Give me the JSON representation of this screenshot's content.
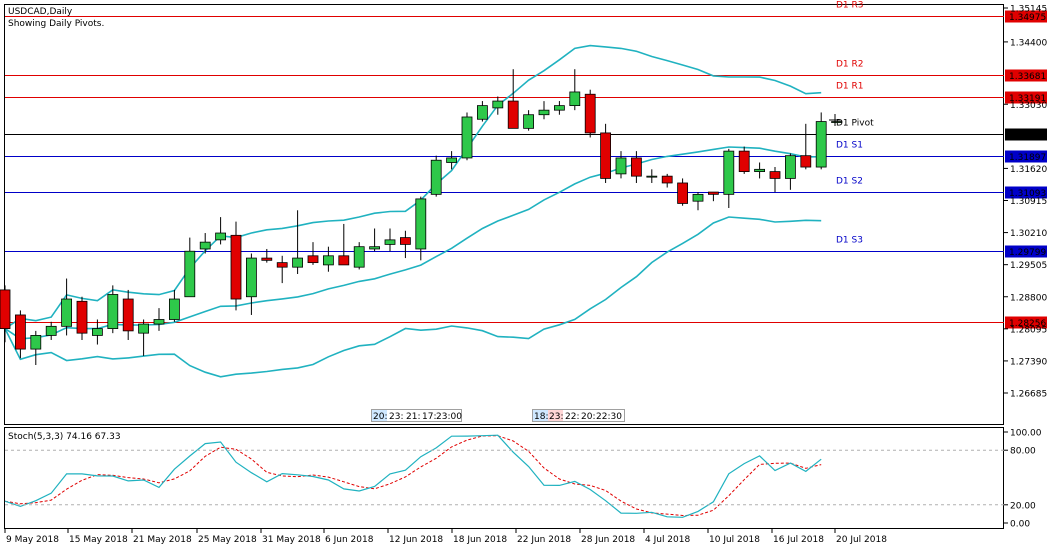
{
  "header": {
    "symbol": "USDCAD,Daily",
    "subtitle": "Showing Daily Pivots."
  },
  "colors": {
    "bull": "#2ec84a",
    "bear": "#e00000",
    "bollinger": "#20b2c0",
    "pivot_resistance": "#e00000",
    "pivot_support": "#0000c8",
    "pivot_main": "#000000",
    "stoch_main": "#20b2c0",
    "stoch_signal": "#e00000"
  },
  "price_axis": {
    "labels": [
      "1.35145",
      "1.34400",
      "1.33030",
      "1.31620",
      "1.30915",
      "1.30210",
      "1.29505",
      "1.28800",
      "1.28095",
      "1.27390",
      "1.26685"
    ]
  },
  "pivots": [
    {
      "name": "D1 R3",
      "value": "1.34975",
      "type": "resistance"
    },
    {
      "name": "D1 R2",
      "value": "1.33681",
      "type": "resistance"
    },
    {
      "name": "D1 R1",
      "value": "1.33191",
      "type": "resistance"
    },
    {
      "name": "D1 Pivot",
      "value": "1.32387",
      "type": "pivot"
    },
    {
      "name": "D1 S1",
      "value": "1.31897",
      "type": "support"
    },
    {
      "name": "D1 S2",
      "value": "1.31093",
      "type": "support"
    },
    {
      "name": "D1 S3",
      "value": "1.29799",
      "type": "support"
    },
    {
      "name": "",
      "value": "1.28256",
      "type": "resistance"
    }
  ],
  "time_ticker_1": [
    "20:",
    "23:",
    "21:",
    "17:",
    "23:00"
  ],
  "time_ticker_2": [
    "18:",
    "23:",
    "22:",
    "20:",
    "22:30"
  ],
  "stochastic": {
    "label": "Stoch(5,3,3) 74.16 67.33",
    "axis": [
      "100.00",
      "80.00",
      "20.00",
      "0.00"
    ]
  },
  "date_axis": [
    "9 May 2018",
    "15 May 2018",
    "21 May 2018",
    "25 May 2018",
    "31 May 2018",
    "6 Jun 2018",
    "12 Jun 2018",
    "18 Jun 2018",
    "22 Jun 2018",
    "28 Jun 2018",
    "4 Jul 2018",
    "10 Jul 2018",
    "16 Jul 2018",
    "20 Jul 2018"
  ],
  "chart_data": {
    "type": "candlestick",
    "title": "USDCAD,Daily",
    "candles": [
      {
        "o": 1.2895,
        "h": 1.2905,
        "l": 1.278,
        "c": 1.281
      },
      {
        "o": 1.284,
        "h": 1.285,
        "l": 1.2745,
        "c": 1.2765
      },
      {
        "o": 1.2765,
        "h": 1.2805,
        "l": 1.273,
        "c": 1.2795
      },
      {
        "o": 1.2795,
        "h": 1.2825,
        "l": 1.2785,
        "c": 1.2815
      },
      {
        "o": 1.2815,
        "h": 1.292,
        "l": 1.2795,
        "c": 1.2875
      },
      {
        "o": 1.287,
        "h": 1.288,
        "l": 1.2785,
        "c": 1.28
      },
      {
        "o": 1.2795,
        "h": 1.283,
        "l": 1.2775,
        "c": 1.281
      },
      {
        "o": 1.281,
        "h": 1.2905,
        "l": 1.28,
        "c": 1.2885
      },
      {
        "o": 1.2875,
        "h": 1.2895,
        "l": 1.2785,
        "c": 1.2805
      },
      {
        "o": 1.28,
        "h": 1.283,
        "l": 1.275,
        "c": 1.282
      },
      {
        "o": 1.282,
        "h": 1.2855,
        "l": 1.2805,
        "c": 1.283
      },
      {
        "o": 1.283,
        "h": 1.2895,
        "l": 1.2825,
        "c": 1.2875
      },
      {
        "o": 1.288,
        "h": 1.301,
        "l": 1.288,
        "c": 1.298
      },
      {
        "o": 1.2985,
        "h": 1.302,
        "l": 1.2975,
        "c": 1.3
      },
      {
        "o": 1.3005,
        "h": 1.3055,
        "l": 1.2995,
        "c": 1.302
      },
      {
        "o": 1.3015,
        "h": 1.3045,
        "l": 1.285,
        "c": 1.2875
      },
      {
        "o": 1.288,
        "h": 1.2975,
        "l": 1.284,
        "c": 1.2965
      },
      {
        "o": 1.2965,
        "h": 1.2985,
        "l": 1.2955,
        "c": 1.296
      },
      {
        "o": 1.2955,
        "h": 1.297,
        "l": 1.291,
        "c": 1.2945
      },
      {
        "o": 1.2945,
        "h": 1.307,
        "l": 1.293,
        "c": 1.2965
      },
      {
        "o": 1.297,
        "h": 1.3,
        "l": 1.295,
        "c": 1.2955
      },
      {
        "o": 1.295,
        "h": 1.299,
        "l": 1.2935,
        "c": 1.297
      },
      {
        "o": 1.297,
        "h": 1.304,
        "l": 1.295,
        "c": 1.295
      },
      {
        "o": 1.2945,
        "h": 1.3,
        "l": 1.294,
        "c": 1.299
      },
      {
        "o": 1.2985,
        "h": 1.303,
        "l": 1.298,
        "c": 1.299
      },
      {
        "o": 1.2995,
        "h": 1.303,
        "l": 1.298,
        "c": 1.3005
      },
      {
        "o": 1.301,
        "h": 1.3025,
        "l": 1.2965,
        "c": 1.2995
      },
      {
        "o": 1.2985,
        "h": 1.31,
        "l": 1.296,
        "c": 1.3095
      },
      {
        "o": 1.3105,
        "h": 1.319,
        "l": 1.31,
        "c": 1.318
      },
      {
        "o": 1.3175,
        "h": 1.32,
        "l": 1.316,
        "c": 1.3185
      },
      {
        "o": 1.3185,
        "h": 1.3285,
        "l": 1.318,
        "c": 1.3275
      },
      {
        "o": 1.327,
        "h": 1.331,
        "l": 1.3265,
        "c": 1.33
      },
      {
        "o": 1.3295,
        "h": 1.332,
        "l": 1.328,
        "c": 1.331
      },
      {
        "o": 1.331,
        "h": 1.338,
        "l": 1.325,
        "c": 1.325
      },
      {
        "o": 1.325,
        "h": 1.329,
        "l": 1.3245,
        "c": 1.328
      },
      {
        "o": 1.328,
        "h": 1.331,
        "l": 1.327,
        "c": 1.329
      },
      {
        "o": 1.329,
        "h": 1.331,
        "l": 1.328,
        "c": 1.33
      },
      {
        "o": 1.33,
        "h": 1.338,
        "l": 1.329,
        "c": 1.333
      },
      {
        "o": 1.3325,
        "h": 1.3335,
        "l": 1.323,
        "c": 1.324
      },
      {
        "o": 1.324,
        "h": 1.326,
        "l": 1.313,
        "c": 1.314
      },
      {
        "o": 1.315,
        "h": 1.32,
        "l": 1.314,
        "c": 1.3185
      },
      {
        "o": 1.3185,
        "h": 1.32,
        "l": 1.313,
        "c": 1.3145
      },
      {
        "o": 1.3145,
        "h": 1.316,
        "l": 1.313,
        "c": 1.3145
      },
      {
        "o": 1.3145,
        "h": 1.315,
        "l": 1.312,
        "c": 1.313
      },
      {
        "o": 1.313,
        "h": 1.314,
        "l": 1.308,
        "c": 1.3085
      },
      {
        "o": 1.309,
        "h": 1.311,
        "l": 1.307,
        "c": 1.3105
      },
      {
        "o": 1.311,
        "h": 1.311,
        "l": 1.309,
        "c": 1.3105
      },
      {
        "o": 1.3105,
        "h": 1.3205,
        "l": 1.3075,
        "c": 1.32
      },
      {
        "o": 1.32,
        "h": 1.321,
        "l": 1.315,
        "c": 1.3155
      },
      {
        "o": 1.3155,
        "h": 1.3175,
        "l": 1.314,
        "c": 1.316
      },
      {
        "o": 1.3155,
        "h": 1.3165,
        "l": 1.311,
        "c": 1.314
      },
      {
        "o": 1.314,
        "h": 1.3195,
        "l": 1.3115,
        "c": 1.319
      },
      {
        "o": 1.319,
        "h": 1.326,
        "l": 1.316,
        "c": 1.3165
      },
      {
        "o": 1.3165,
        "h": 1.3285,
        "l": 1.316,
        "c": 1.3265
      },
      {
        "o": 1.3265,
        "h": 1.3265,
        "l": 1.3265,
        "c": 1.3265
      }
    ]
  }
}
